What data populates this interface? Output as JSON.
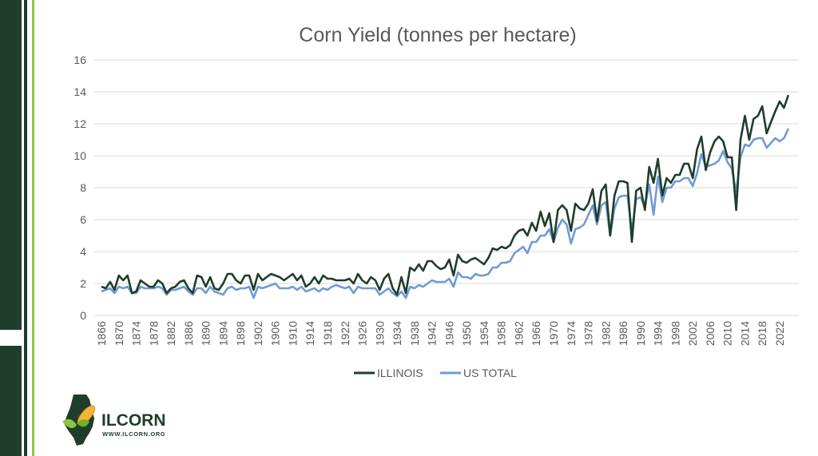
{
  "colors": {
    "illinois": "#1f3d2b",
    "us_total": "#6f9bd4",
    "band": "#1f3d2b",
    "accent": "#8dc63f",
    "grid": "#d9d9d9",
    "corn": "#f2b53a"
  },
  "logo": {
    "name": "ILCORN",
    "url": "WWW.ILCORN.ORG"
  },
  "chart_data": {
    "type": "line",
    "title": "Corn Yield (tonnes per hectare)",
    "xlabel": "",
    "ylabel": "",
    "ylim": [
      0,
      16
    ],
    "yticks": [
      "0",
      "2",
      "4",
      "6",
      "8",
      "10",
      "12",
      "14",
      "16"
    ],
    "x_start": 1866,
    "xticks": [
      "1866",
      "1870",
      "1874",
      "1878",
      "1882",
      "1886",
      "1890",
      "1894",
      "1898",
      "1902",
      "1906",
      "1910",
      "1914",
      "1918",
      "1922",
      "1926",
      "1930",
      "1934",
      "1938",
      "1942",
      "1946",
      "1950",
      "1954",
      "1958",
      "1962",
      "1966",
      "1970",
      "1974",
      "1978",
      "1982",
      "1986",
      "1990",
      "1994",
      "1998",
      "2002",
      "2006",
      "2010",
      "2014",
      "2018",
      "2022"
    ],
    "legend_position": "bottom",
    "grid": true,
    "series": [
      {
        "name": "ILLINOIS",
        "color": "#1f3d2b",
        "values": [
          1.8,
          1.7,
          2.1,
          1.6,
          2.5,
          2.2,
          2.5,
          1.4,
          1.5,
          2.2,
          2.0,
          1.8,
          1.8,
          2.2,
          2.0,
          1.4,
          1.7,
          1.8,
          2.1,
          2.2,
          1.7,
          1.4,
          2.5,
          2.4,
          1.8,
          2.4,
          1.7,
          1.6,
          2.0,
          2.6,
          2.6,
          2.2,
          2.0,
          2.5,
          2.5,
          1.6,
          2.6,
          2.2,
          2.4,
          2.6,
          2.5,
          2.4,
          2.2,
          2.4,
          2.6,
          2.2,
          2.5,
          1.8,
          2.0,
          2.4,
          2.0,
          2.5,
          2.3,
          2.3,
          2.2,
          2.2,
          2.2,
          2.3,
          2.0,
          2.6,
          2.2,
          2.0,
          2.4,
          2.2,
          1.6,
          2.3,
          2.6,
          1.7,
          1.3,
          2.4,
          1.4,
          3.0,
          2.8,
          3.2,
          2.8,
          3.4,
          3.4,
          3.1,
          2.9,
          3.0,
          3.5,
          2.5,
          3.8,
          3.4,
          3.3,
          3.5,
          3.6,
          3.4,
          3.2,
          3.6,
          4.2,
          4.1,
          4.3,
          4.2,
          4.4,
          5.0,
          5.3,
          5.4,
          5.0,
          5.8,
          5.3,
          6.5,
          5.6,
          6.4,
          4.6,
          6.6,
          6.9,
          6.6,
          5.3,
          7.0,
          6.7,
          6.6,
          7.0,
          7.9,
          5.9,
          7.8,
          8.2,
          5.0,
          7.5,
          8.4,
          8.4,
          8.3,
          4.6,
          7.8,
          8.0,
          6.6,
          9.3,
          8.3,
          9.8,
          7.5,
          8.6,
          8.3,
          8.8,
          8.8,
          9.5,
          9.5,
          8.6,
          10.4,
          11.2,
          9.1,
          10.2,
          10.9,
          11.2,
          10.9,
          9.9,
          9.9,
          6.6,
          11.0,
          12.5,
          11.0,
          12.3,
          12.5,
          13.1,
          11.4,
          12.1,
          12.8,
          13.4,
          13.0,
          13.8
        ]
      },
      {
        "name": "US TOTAL",
        "color": "#6f9bd4",
        "values": [
          1.5,
          1.6,
          1.7,
          1.4,
          1.8,
          1.7,
          1.8,
          1.4,
          1.4,
          1.8,
          1.7,
          1.7,
          1.7,
          1.8,
          1.7,
          1.3,
          1.6,
          1.6,
          1.7,
          1.8,
          1.5,
          1.3,
          1.7,
          1.7,
          1.4,
          1.8,
          1.5,
          1.4,
          1.3,
          1.7,
          1.8,
          1.6,
          1.7,
          1.7,
          1.8,
          1.1,
          1.8,
          1.7,
          1.8,
          1.9,
          2.0,
          1.7,
          1.7,
          1.7,
          1.8,
          1.6,
          1.8,
          1.5,
          1.6,
          1.7,
          1.5,
          1.7,
          1.6,
          1.8,
          1.9,
          1.8,
          1.7,
          1.8,
          1.4,
          1.8,
          1.7,
          1.7,
          1.7,
          1.7,
          1.3,
          1.5,
          1.7,
          1.4,
          1.2,
          1.5,
          1.1,
          1.8,
          1.7,
          1.9,
          1.8,
          2.0,
          2.2,
          2.1,
          2.1,
          2.1,
          2.3,
          1.8,
          2.7,
          2.4,
          2.4,
          2.3,
          2.6,
          2.5,
          2.5,
          2.6,
          3.0,
          3.0,
          3.3,
          3.3,
          3.4,
          3.9,
          4.1,
          4.3,
          3.9,
          4.6,
          4.6,
          5.0,
          5.0,
          5.4,
          4.6,
          5.5,
          6.0,
          5.7,
          4.5,
          5.4,
          5.5,
          5.7,
          6.3,
          6.9,
          5.7,
          6.9,
          7.1,
          5.0,
          6.7,
          7.4,
          7.5,
          7.5,
          5.3,
          7.3,
          7.4,
          6.8,
          8.2,
          6.3,
          8.7,
          7.1,
          8.0,
          8.0,
          8.4,
          8.4,
          8.6,
          8.6,
          8.1,
          8.9,
          10.1,
          9.3,
          9.4,
          9.5,
          9.7,
          10.3,
          9.6,
          9.2,
          7.7,
          9.9,
          10.7,
          10.6,
          11.0,
          11.1,
          11.1,
          10.5,
          10.8,
          11.1,
          10.9,
          11.1,
          11.7
        ]
      }
    ]
  }
}
